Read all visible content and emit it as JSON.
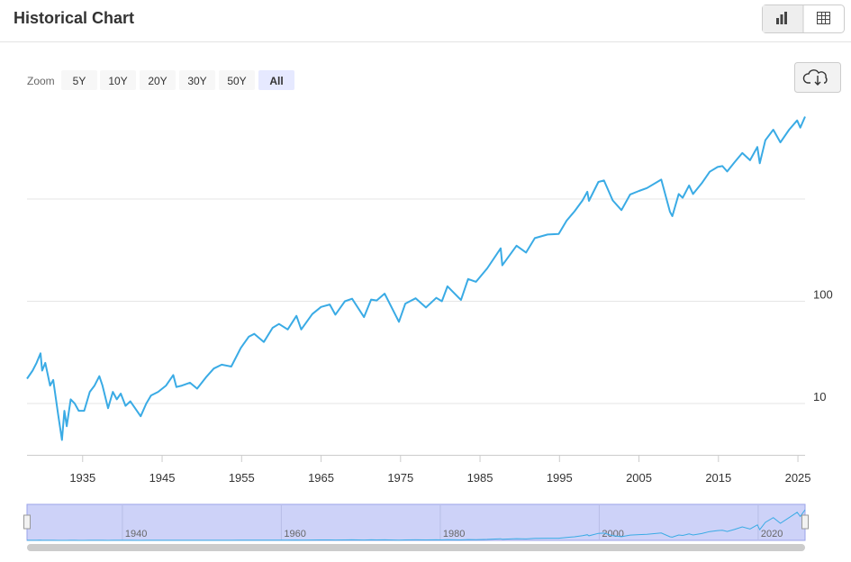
{
  "header": {
    "title": "Historical Chart"
  },
  "zoom": {
    "label": "Zoom",
    "buttons": [
      "5Y",
      "10Y",
      "20Y",
      "30Y",
      "50Y",
      "All"
    ],
    "active": 5
  },
  "chart_data": {
    "type": "line",
    "log_y": true,
    "grid": true,
    "color": "#3aabe5",
    "x": [
      1928.0,
      1928.7,
      1929.2,
      1929.7,
      1929.9,
      1930.3,
      1930.9,
      1931.3,
      1931.9,
      1932.4,
      1932.7,
      1933.0,
      1933.5,
      1934.0,
      1934.5,
      1935.2,
      1935.9,
      1936.5,
      1937.1,
      1937.5,
      1938.2,
      1938.8,
      1939.3,
      1939.8,
      1940.4,
      1941.0,
      1942.3,
      1943.0,
      1943.6,
      1944.5,
      1945.5,
      1946.4,
      1946.8,
      1947.5,
      1948.5,
      1949.4,
      1950.5,
      1951.5,
      1952.5,
      1953.7,
      1954.9,
      1955.9,
      1956.6,
      1957.8,
      1958.9,
      1959.7,
      1960.8,
      1961.9,
      1962.5,
      1963.9,
      1965.0,
      1966.1,
      1966.8,
      1968.0,
      1968.9,
      1970.4,
      1971.3,
      1972.0,
      1973.0,
      1974.8,
      1975.6,
      1976.9,
      1978.2,
      1979.5,
      1980.2,
      1980.9,
      1982.6,
      1983.5,
      1984.5,
      1985.9,
      1987.6,
      1987.8,
      1989.6,
      1990.8,
      1991.9,
      1993.5,
      1994.9,
      1995.9,
      1996.9,
      1997.9,
      1998.5,
      1998.7,
      1999.9,
      2000.6,
      2001.7,
      2002.8,
      2003.9,
      2005.0,
      2006.0,
      2007.8,
      2008.9,
      2009.2,
      2010.0,
      2010.5,
      2011.3,
      2011.8,
      2012.9,
      2013.9,
      2014.9,
      2015.5,
      2016.1,
      2017.0,
      2018.0,
      2018.98,
      2019.9,
      2020.2,
      2020.9,
      2021.9,
      2022.8,
      2023.9,
      2024.9,
      2025.3,
      2025.9
    ],
    "values": [
      17.5,
      21,
      25,
      31,
      21,
      25,
      15,
      17,
      8,
      4.4,
      8.5,
      6,
      11,
      10,
      8.5,
      8.5,
      13,
      15,
      18.5,
      15,
      9,
      13,
      11,
      12.5,
      9.5,
      10.5,
      7.5,
      10,
      12,
      13,
      15,
      19,
      14.5,
      15,
      16,
      14,
      18,
      22,
      24,
      23,
      35,
      45,
      48,
      40,
      55,
      60,
      53,
      72,
      53,
      75,
      88,
      93,
      74,
      100,
      106,
      70,
      104,
      102,
      119,
      63,
      95,
      107,
      87,
      108,
      100,
      140,
      103,
      165,
      155,
      210,
      330,
      225,
      350,
      300,
      415,
      450,
      455,
      615,
      760,
      970,
      1180,
      960,
      1470,
      1520,
      970,
      780,
      1110,
      1200,
      1280,
      1550,
      750,
      680,
      1120,
      1030,
      1360,
      1120,
      1430,
      1850,
      2060,
      2100,
      1860,
      2280,
      2820,
      2400,
      3230,
      2240,
      3760,
      4770,
      3580,
      4770,
      5880,
      5000,
      6400
    ],
    "xlim": [
      1928,
      2025.9
    ],
    "xticks": [
      1935,
      1945,
      1955,
      1965,
      1975,
      1985,
      1995,
      2005,
      2015,
      2025
    ],
    "ylim": [
      3.15,
      9900
    ],
    "yticks": [
      10,
      100,
      {
        "value": 1000,
        "label": null
      }
    ],
    "navigator_xticks": [
      1940,
      1960,
      1980,
      2000,
      2020
    ]
  }
}
